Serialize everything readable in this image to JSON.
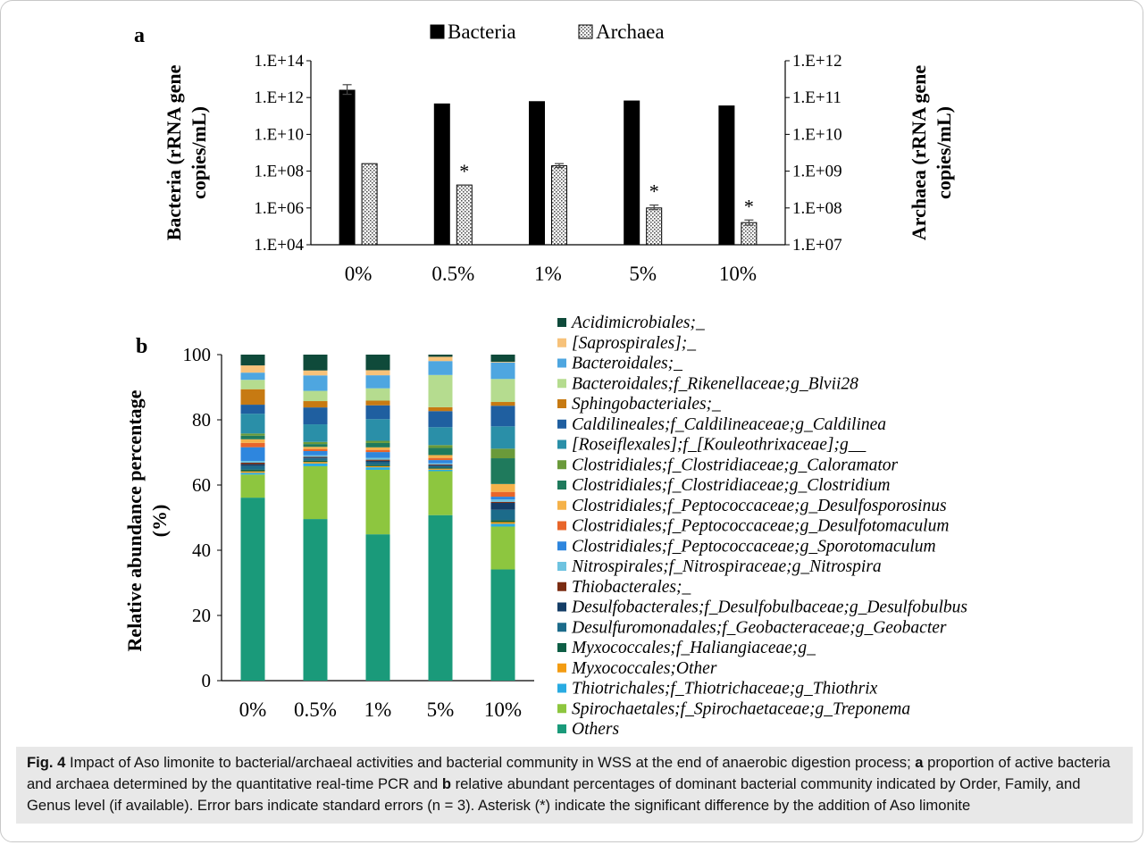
{
  "panel_a": {
    "label": "a"
  },
  "panel_b": {
    "label": "b"
  },
  "caption": {
    "fig_label": "Fig. 4",
    "text_1": " Impact of Aso limonite to bacterial/archaeal activities and bacterial community in WSS at the end of anaerobic digestion process; ",
    "letter_a": "a",
    "text_2": " proportion of active bacteria and archaea determined by the quantitative real-time PCR and ",
    "letter_b": "b",
    "text_3": " relative abundant percentages of dominant bacterial community indicated by Order, Family, and Genus level (if available). Error bars indicate standard errors (n = 3). Asterisk (*) indicate the significant difference by the addition of Aso limonite"
  },
  "chart_data": [
    {
      "type": "bar",
      "categories": [
        "0%",
        "0.5%",
        "1%",
        "5%",
        "10%"
      ],
      "y_scale": "log",
      "ylim_left": [
        10000,
        100000000000000
      ],
      "ylim_right": [
        10000000,
        1000000000000
      ],
      "yticks_left": [
        "1.E+04",
        "1.E+06",
        "1.E+08",
        "1.E+10",
        "1.E+12",
        "1.E+14"
      ],
      "yticks_right": [
        "1.E+07",
        "1.E+08",
        "1.E+09",
        "1.E+10",
        "1.E+11",
        "1.E+12"
      ],
      "ylabel_left": "Bacteria (rRNA gene copies/mL)",
      "ylabel_right": "Archaea (rRNA gene copies/mL)",
      "legend_position": "top",
      "series": [
        {
          "name": "Bacteria",
          "axis": "left",
          "color": "#000000",
          "values": [
            2500000000000,
            450000000000,
            600000000000,
            650000000000,
            350000000000
          ],
          "error_high": [
            5000000000000,
            null,
            null,
            null,
            null
          ],
          "error_low": [
            1500000000000,
            null,
            null,
            null,
            null
          ],
          "significant": [
            false,
            false,
            false,
            false,
            false
          ]
        },
        {
          "name": "Archaea",
          "axis": "right",
          "pattern": "dotted",
          "values": [
            1600000000,
            420000000,
            1400000000,
            100000000,
            40000000
          ],
          "error_high": [
            null,
            null,
            1600000000,
            120000000,
            47000000
          ],
          "error_low": [
            null,
            null,
            1250000000,
            90000000,
            34000000
          ],
          "significant": [
            false,
            true,
            false,
            true,
            true
          ]
        }
      ],
      "significance_marker": "*"
    },
    {
      "type": "bar",
      "stacked": true,
      "categories": [
        "0%",
        "0.5%",
        "1%",
        "5%",
        "10%"
      ],
      "ylabel": "Relative abundance percentage (%)",
      "ylim": [
        0,
        100
      ],
      "yticks": [
        "0",
        "20",
        "40",
        "60",
        "80",
        "100"
      ],
      "legend_position": "right",
      "series": [
        {
          "name": "Others",
          "color": "#1a9a7a",
          "values": [
            50.8,
            45.9,
            40.4,
            46.3,
            32.4
          ]
        },
        {
          "name": "Spirochaetales;f_Spirochaetaceae;g_Treponema",
          "color": "#8dc63f",
          "values": [
            6.4,
            15.0,
            17.8,
            12.3,
            12.5
          ]
        },
        {
          "name": "Thiotrichales;f_Thiotrichaceae;g_Thiothrix",
          "color": "#29abe2",
          "values": [
            0.5,
            0.8,
            0.7,
            0.4,
            0.8
          ]
        },
        {
          "name": "Myxococcales;Other",
          "color": "#f39c12",
          "values": [
            0.4,
            0.4,
            0.3,
            0.3,
            0.5
          ]
        },
        {
          "name": "Myxococcales;f_Haliangiaceae;g_",
          "color": "#0e5e45",
          "values": [
            0.5,
            0.4,
            0.4,
            0.3,
            0.6
          ]
        },
        {
          "name": "Desulfuromonadales;f_Geobacteraceae;g_Geobacter",
          "color": "#1c6b8a",
          "values": [
            1.0,
            0.6,
            0.7,
            0.4,
            3.0
          ]
        },
        {
          "name": "Desulfobacterales;f_Desulfobulbaceae;g_Desulfobulbus",
          "color": "#143d66",
          "values": [
            0.5,
            0.3,
            0.4,
            0.3,
            2.0
          ]
        },
        {
          "name": "Thiobacterales;_",
          "color": "#7a2c12",
          "values": [
            0.4,
            0.2,
            0.3,
            0.2,
            0.3
          ]
        },
        {
          "name": "Nitrospirales;f_Nitrospiraceae;g_Nitrospira",
          "color": "#6ec3e0",
          "values": [
            0.5,
            0.4,
            0.5,
            0.3,
            0.7
          ]
        },
        {
          "name": "Clostridiales;f_Peptococcaceae;g_Sporotomaculum",
          "color": "#2e86de",
          "values": [
            3.8,
            1.2,
            1.6,
            0.9,
            0.8
          ]
        },
        {
          "name": "Clostridiales;f_Peptococcaceae;g_Desulfotomaculum",
          "color": "#e8652a",
          "values": [
            1.2,
            0.6,
            0.6,
            0.6,
            1.4
          ]
        },
        {
          "name": "Clostridiales;f_Peptococcaceae;g_Desulfosporosinus",
          "color": "#f5b24a",
          "values": [
            1.0,
            0.6,
            0.7,
            0.8,
            2.3
          ]
        },
        {
          "name": "Clostridiales;f_Clostridiaceae;g_Clostridium",
          "color": "#1f7a5c",
          "values": [
            1.0,
            0.8,
            1.2,
            2.0,
            7.5
          ]
        },
        {
          "name": "Clostridiales;f_Clostridiaceae;g_Caloramator",
          "color": "#6a9a3a",
          "values": [
            0.6,
            0.6,
            0.6,
            0.8,
            2.8
          ]
        },
        {
          "name": "[Roseiflexales];f_[Kouleothrixaceae];g__",
          "color": "#2a8fa8",
          "values": [
            5.5,
            5.0,
            6.0,
            5.0,
            6.5
          ]
        },
        {
          "name": "Caldilineales;f_Caldilineaceae;g_Caldilinea",
          "color": "#1f5fa0",
          "values": [
            2.5,
            4.8,
            3.8,
            4.5,
            6.0
          ]
        },
        {
          "name": "Sphingobacteriales;_",
          "color": "#c77a12",
          "values": [
            4.3,
            1.8,
            1.3,
            1.1,
            1.1
          ]
        },
        {
          "name": "Bacteroidales;f_Rikenellaceae;g_Blvii28",
          "color": "#b5dc8f",
          "values": [
            2.6,
            2.9,
            3.4,
            9.0,
            6.7
          ]
        },
        {
          "name": "Bacteroidales;_",
          "color": "#4ea6e0",
          "values": [
            2.0,
            4.4,
            3.6,
            3.9,
            4.8
          ]
        },
        {
          "name": "[Saprospirales];_",
          "color": "#f7c27a",
          "values": [
            2.0,
            1.4,
            1.4,
            1.2,
            0.2
          ]
        },
        {
          "name": "Acidimicrobiales;_",
          "color": "#0f4a3a",
          "values": [
            3.0,
            4.5,
            4.3,
            0.6,
            2.1
          ]
        }
      ]
    }
  ]
}
